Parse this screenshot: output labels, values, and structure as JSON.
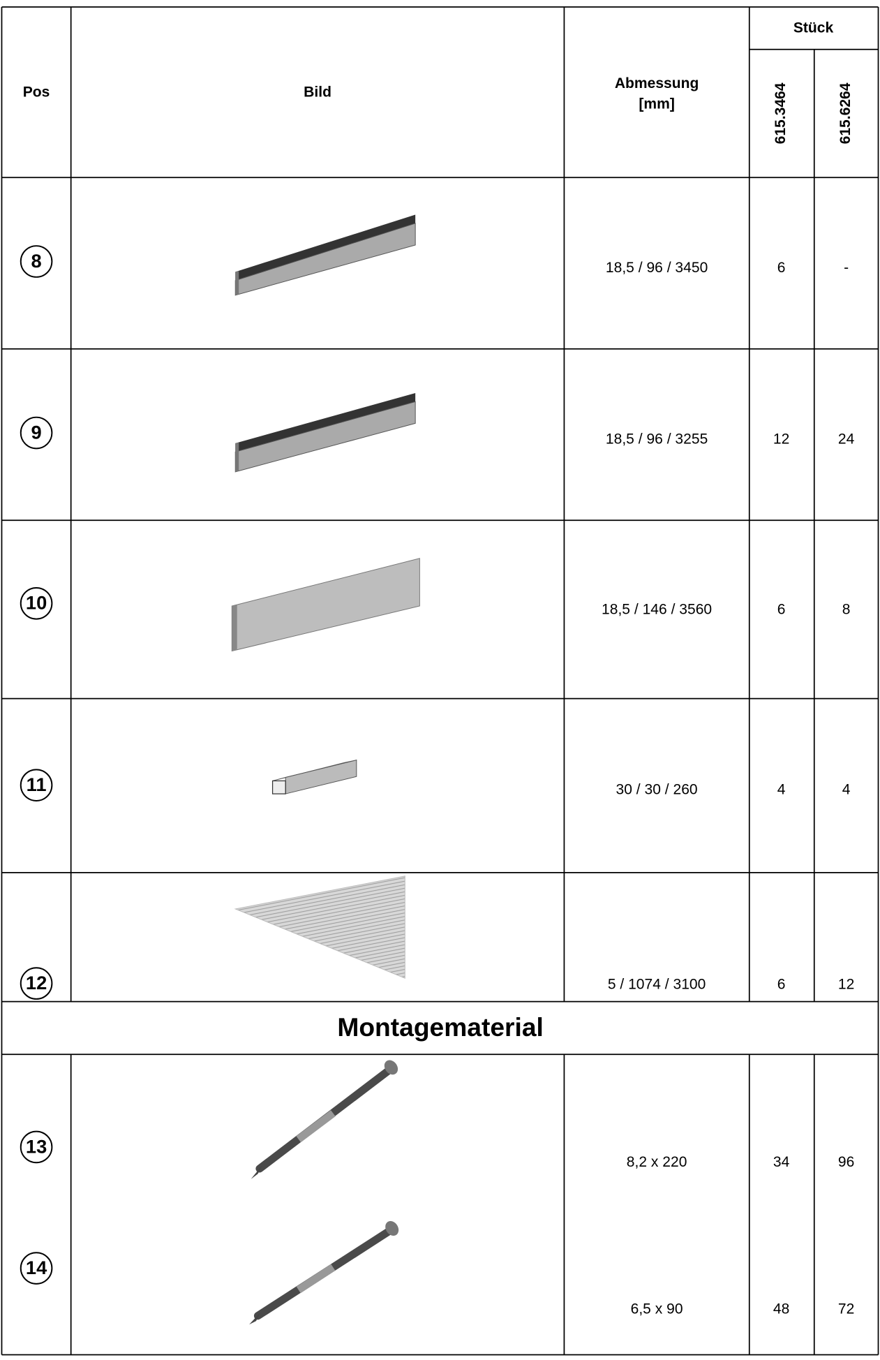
{
  "header": {
    "pos": "Pos",
    "image": "Bild",
    "dimension": [
      "Abmessung",
      "[mm]"
    ],
    "pieces": "Stück",
    "variants": [
      "615.3464",
      "615.6264"
    ]
  },
  "rows": [
    {
      "pos": "8",
      "dimension": "18,5 / 96 / 3450",
      "qty": [
        "6",
        "-"
      ]
    },
    {
      "pos": "9",
      "dimension": "18,5 / 96 / 3255",
      "qty": [
        "12",
        "24"
      ]
    },
    {
      "pos": "10",
      "dimension": "18,5 / 146 / 3560",
      "qty": [
        "6",
        "8"
      ]
    },
    {
      "pos": "11",
      "dimension": "30 / 30 / 260",
      "qty": [
        "4",
        "4"
      ]
    },
    {
      "pos": "12",
      "dimension": "5 / 1074 / 3100",
      "qty": [
        "6",
        "12"
      ]
    }
  ],
  "section": "Montagematerial",
  "assembly_rows": [
    {
      "pos": "13",
      "dimension": "8,2 x 220",
      "qty": [
        "34",
        "96"
      ]
    },
    {
      "pos": "14",
      "dimension": "6,5 x 90",
      "qty": [
        "48",
        "72"
      ]
    }
  ]
}
